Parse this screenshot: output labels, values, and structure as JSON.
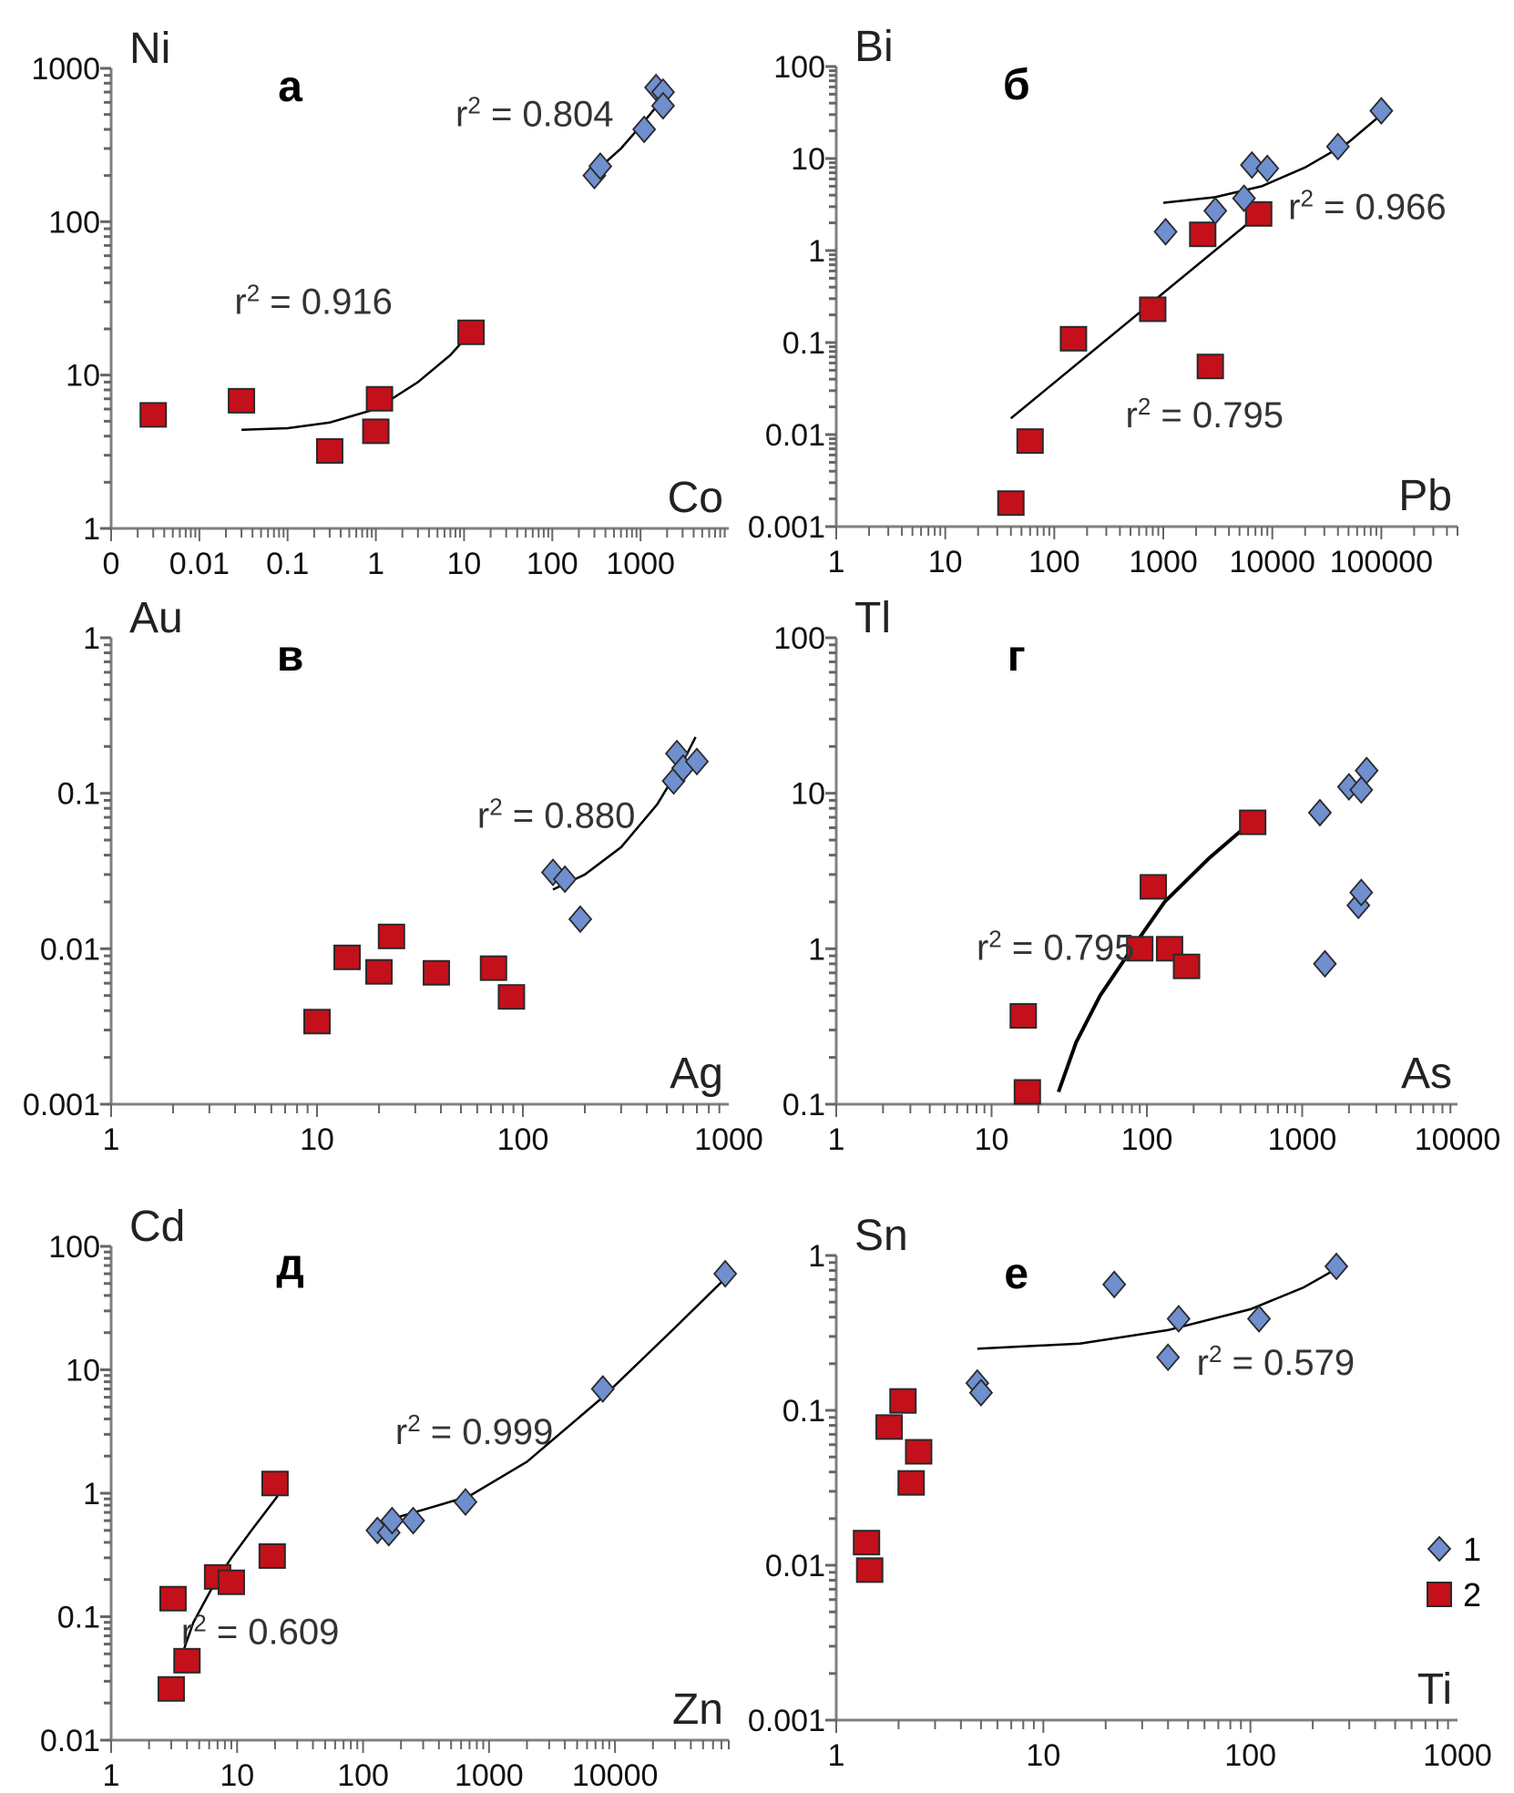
{
  "chart_data": [
    {
      "id": "a",
      "type": "scatter",
      "panel_label": "а",
      "xlabel": "Co",
      "ylabel": "Ni",
      "xscale": "log",
      "yscale": "log",
      "xlim": [
        0.001,
        10000
      ],
      "ylim": [
        1,
        1000
      ],
      "xtick_labels": [
        {
          "value": 0.001,
          "label": "0"
        },
        {
          "value": 0.01,
          "label": "0.01"
        },
        {
          "value": 0.1,
          "label": "0.1"
        },
        {
          "value": 1,
          "label": "1"
        },
        {
          "value": 10,
          "label": "10"
        },
        {
          "value": 100,
          "label": "100"
        },
        {
          "value": 1000,
          "label": "1000"
        }
      ],
      "ytick_labels": [
        {
          "value": 1,
          "label": "1"
        },
        {
          "value": 10,
          "label": "10"
        },
        {
          "value": 100,
          "label": "100"
        },
        {
          "value": 1000,
          "label": "1000"
        }
      ],
      "series": [
        {
          "name": "1",
          "marker": "diamond",
          "points": [
            [
              300,
              200
            ],
            [
              350,
              230
            ],
            [
              1100,
              400
            ],
            [
              1500,
              750
            ],
            [
              1800,
              700
            ],
            [
              1800,
              570
            ]
          ],
          "fit": {
            "r2_label": "0.804",
            "curve": [
              [
                300,
                210
              ],
              [
                600,
                300
              ],
              [
                1000,
                420
              ],
              [
                1500,
                560
              ],
              [
                1900,
                720
              ]
            ]
          }
        },
        {
          "name": "2",
          "marker": "square",
          "points": [
            [
              0.003,
              5.5
            ],
            [
              0.03,
              6.8
            ],
            [
              0.3,
              3.2
            ],
            [
              1,
              4.3
            ],
            [
              1.1,
              7
            ],
            [
              12,
              19
            ]
          ],
          "fit": {
            "r2_label": "0.916",
            "curve": [
              [
                0.03,
                4.4
              ],
              [
                0.1,
                4.5
              ],
              [
                0.3,
                4.9
              ],
              [
                1,
                6
              ],
              [
                3,
                9
              ],
              [
                7,
                13.5
              ],
              [
                11,
                18
              ]
            ]
          }
        }
      ],
      "r2_text_positions": [
        {
          "series": "1",
          "x": 8,
          "y": 420
        },
        {
          "series": "2",
          "x": 0.025,
          "y": 25
        }
      ]
    },
    {
      "id": "b",
      "type": "scatter",
      "panel_label": "б",
      "xlabel": "Pb",
      "ylabel": "Bi",
      "xscale": "log",
      "yscale": "log",
      "xlim": [
        1,
        500000
      ],
      "ylim": [
        0.001,
        100
      ],
      "xtick_labels": [
        {
          "value": 1,
          "label": "1"
        },
        {
          "value": 10,
          "label": "10"
        },
        {
          "value": 100,
          "label": "100"
        },
        {
          "value": 1000,
          "label": "1000"
        },
        {
          "value": 10000,
          "label": "10000"
        },
        {
          "value": 100000,
          "label": "100000"
        }
      ],
      "ytick_labels": [
        {
          "value": 0.001,
          "label": "0.001"
        },
        {
          "value": 0.01,
          "label": "0.01"
        },
        {
          "value": 0.1,
          "label": "0.1"
        },
        {
          "value": 1,
          "label": "1"
        },
        {
          "value": 10,
          "label": "10"
        },
        {
          "value": 100,
          "label": "100"
        }
      ],
      "series": [
        {
          "name": "1",
          "marker": "diamond",
          "points": [
            [
              1050,
              1.6
            ],
            [
              3000,
              2.7
            ],
            [
              5500,
              3.7
            ],
            [
              6500,
              8.5
            ],
            [
              9000,
              7.8
            ],
            [
              40000,
              13.5
            ],
            [
              100000,
              33
            ]
          ],
          "fit": {
            "r2_label": "0.966",
            "curve": [
              [
                1000,
                3.3
              ],
              [
                3000,
                3.8
              ],
              [
                8000,
                5
              ],
              [
                20000,
                8
              ],
              [
                50000,
                15
              ],
              [
                100000,
                30
              ]
            ]
          }
        },
        {
          "name": "2",
          "marker": "square",
          "points": [
            [
              40,
              0.0018
            ],
            [
              60,
              0.0085
            ],
            [
              150,
              0.11
            ],
            [
              800,
              0.23
            ],
            [
              2300,
              1.5
            ],
            [
              2700,
              0.055
            ],
            [
              7500,
              2.5
            ]
          ],
          "fit": {
            "r2_label": "0.795",
            "curve": [
              [
                40,
                0.015
              ],
              [
                7000,
                2.3
              ]
            ]
          }
        }
      ],
      "r2_text_positions": [
        {
          "series": "1",
          "x": 14000,
          "y": 2.2
        },
        {
          "series": "2",
          "x": 450,
          "y": 0.012
        }
      ]
    },
    {
      "id": "v",
      "type": "scatter",
      "panel_label": "в",
      "xlabel": "Ag",
      "ylabel": "Au",
      "xscale": "log",
      "yscale": "log",
      "xlim": [
        1,
        1000
      ],
      "ylim": [
        0.001,
        1
      ],
      "xtick_labels": [
        {
          "value": 1,
          "label": "1"
        },
        {
          "value": 10,
          "label": "10"
        },
        {
          "value": 100,
          "label": "100"
        },
        {
          "value": 1000,
          "label": "1000"
        }
      ],
      "ytick_labels": [
        {
          "value": 0.001,
          "label": "0.001"
        },
        {
          "value": 0.01,
          "label": "0.01"
        },
        {
          "value": 0.1,
          "label": "0.1"
        },
        {
          "value": 1,
          "label": "1"
        }
      ],
      "series": [
        {
          "name": "1",
          "marker": "diamond",
          "points": [
            [
              140,
              0.031
            ],
            [
              160,
              0.028
            ],
            [
              190,
              0.0155
            ],
            [
              540,
              0.12
            ],
            [
              560,
              0.18
            ],
            [
              600,
              0.145
            ],
            [
              700,
              0.16
            ]
          ],
          "fit": {
            "r2_label": "0.880",
            "curve": [
              [
                140,
                0.024
              ],
              [
                200,
                0.03
              ],
              [
                300,
                0.045
              ],
              [
                450,
                0.085
              ],
              [
                600,
                0.16
              ],
              [
                690,
                0.23
              ]
            ]
          }
        },
        {
          "name": "2",
          "marker": "square",
          "points": [
            [
              10,
              0.0034
            ],
            [
              14,
              0.0088
            ],
            [
              20,
              0.0071
            ],
            [
              23,
              0.012
            ],
            [
              38,
              0.007
            ],
            [
              72,
              0.0075
            ],
            [
              88,
              0.0049
            ]
          ],
          "fit": null
        }
      ],
      "r2_text_positions": [
        {
          "series": "1",
          "x": 60,
          "y": 0.06
        }
      ]
    },
    {
      "id": "g",
      "type": "scatter",
      "panel_label": "г",
      "xlabel": "As",
      "ylabel": "Tl",
      "xscale": "log",
      "yscale": "log",
      "xlim": [
        1,
        10000
      ],
      "ylim": [
        0.1,
        100
      ],
      "xtick_labels": [
        {
          "value": 1,
          "label": "1"
        },
        {
          "value": 10,
          "label": "10"
        },
        {
          "value": 100,
          "label": "100"
        },
        {
          "value": 1000,
          "label": "1000"
        },
        {
          "value": 10000,
          "label": "10000"
        }
      ],
      "ytick_labels": [
        {
          "value": 0.1,
          "label": "0.1"
        },
        {
          "value": 1,
          "label": "1"
        },
        {
          "value": 10,
          "label": "10"
        },
        {
          "value": 100,
          "label": "100"
        }
      ],
      "series": [
        {
          "name": "1",
          "marker": "diamond",
          "points": [
            [
              1300,
              7.5
            ],
            [
              1400,
              0.8
            ],
            [
              2000,
              11
            ],
            [
              2400,
              10.5
            ],
            [
              2300,
              1.9
            ],
            [
              2400,
              2.3
            ],
            [
              2600,
              14
            ]
          ],
          "fit": null
        },
        {
          "name": "2",
          "marker": "square",
          "points": [
            [
              16,
              0.37
            ],
            [
              17,
              0.12
            ],
            [
              90,
              1
            ],
            [
              110,
              2.5
            ],
            [
              140,
              1
            ],
            [
              180,
              0.77
            ],
            [
              480,
              6.5
            ]
          ],
          "fit": {
            "r2_label": "0.795",
            "curve": [
              [
                27,
                0.12
              ],
              [
                35,
                0.25
              ],
              [
                50,
                0.5
              ],
              [
                80,
                1.0
              ],
              [
                130,
                2.0
              ],
              [
                250,
                3.8
              ],
              [
                450,
                6.3
              ]
            ]
          }
        }
      ],
      "r2_text_positions": [
        {
          "series": "2",
          "x": 8,
          "y": 0.85
        }
      ]
    },
    {
      "id": "d",
      "type": "scatter",
      "panel_label": "д",
      "xlabel": "Zn",
      "ylabel": "Cd",
      "xscale": "log",
      "yscale": "log",
      "xlim": [
        1,
        80000
      ],
      "ylim": [
        0.01,
        100
      ],
      "xtick_labels": [
        {
          "value": 1,
          "label": "1"
        },
        {
          "value": 10,
          "label": "10"
        },
        {
          "value": 100,
          "label": "100"
        },
        {
          "value": 1000,
          "label": "1000"
        },
        {
          "value": 10000,
          "label": "10000"
        }
      ],
      "ytick_labels": [
        {
          "value": 0.01,
          "label": "0.01"
        },
        {
          "value": 0.1,
          "label": "0.1"
        },
        {
          "value": 1,
          "label": "1"
        },
        {
          "value": 10,
          "label": "10"
        },
        {
          "value": 100,
          "label": "100"
        }
      ],
      "series": [
        {
          "name": "1",
          "marker": "diamond",
          "points": [
            [
              130,
              0.5
            ],
            [
              160,
              0.48
            ],
            [
              170,
              0.6
            ],
            [
              250,
              0.6
            ],
            [
              650,
              0.85
            ],
            [
              8000,
              7
            ],
            [
              75000,
              60
            ]
          ],
          "fit": {
            "r2_label": "0.999",
            "curve": [
              [
                170,
                0.62
              ],
              [
                400,
                0.8
              ],
              [
                700,
                0.95
              ],
              [
                2000,
                1.8
              ],
              [
                8000,
                6
              ],
              [
                30000,
                22
              ],
              [
                75000,
                55
              ]
            ]
          }
        },
        {
          "name": "2",
          "marker": "square",
          "points": [
            [
              3,
              0.026
            ],
            [
              3.1,
              0.14
            ],
            [
              4,
              0.044
            ],
            [
              7,
              0.21
            ],
            [
              9,
              0.19
            ],
            [
              19,
              0.31
            ],
            [
              20,
              1.2
            ]
          ],
          "fit": {
            "r2_label": "0.609",
            "curve": [
              [
                3.4,
                0.04
              ],
              [
                4.5,
                0.09
              ],
              [
                6.5,
                0.18
              ],
              [
                9,
                0.3
              ],
              [
                13,
                0.5
              ],
              [
                21,
                0.95
              ]
            ]
          }
        }
      ],
      "r2_text_positions": [
        {
          "series": "1",
          "x": 180,
          "y": 2.5
        },
        {
          "series": "2",
          "x": 3.6,
          "y": 0.06
        }
      ]
    },
    {
      "id": "e",
      "type": "scatter",
      "panel_label": "е",
      "xlabel": "Ti",
      "ylabel": "Sn",
      "xscale": "log",
      "yscale": "log",
      "xlim": [
        1,
        1000
      ],
      "ylim": [
        0.001,
        1
      ],
      "xtick_labels": [
        {
          "value": 1,
          "label": "1"
        },
        {
          "value": 10,
          "label": "10"
        },
        {
          "value": 100,
          "label": "100"
        },
        {
          "value": 1000,
          "label": "1000"
        }
      ],
      "ytick_labels": [
        {
          "value": 0.001,
          "label": "0.001"
        },
        {
          "value": 0.01,
          "label": "0.01"
        },
        {
          "value": 0.1,
          "label": "0.1"
        },
        {
          "value": 1,
          "label": "1"
        }
      ],
      "series": [
        {
          "name": "1",
          "marker": "diamond",
          "points": [
            [
              4.8,
              0.15
            ],
            [
              5,
              0.13
            ],
            [
              22,
              0.65
            ],
            [
              40,
              0.22
            ],
            [
              45,
              0.39
            ],
            [
              110,
              0.39
            ],
            [
              260,
              0.85
            ]
          ],
          "fit": {
            "r2_label": "0.579",
            "curve": [
              [
                4.8,
                0.25
              ],
              [
                15,
                0.27
              ],
              [
                40,
                0.33
              ],
              [
                100,
                0.45
              ],
              [
                180,
                0.62
              ],
              [
                260,
                0.82
              ]
            ]
          }
        },
        {
          "name": "2",
          "marker": "square",
          "points": [
            [
              1.4,
              0.014
            ],
            [
              1.45,
              0.0093
            ],
            [
              1.8,
              0.078
            ],
            [
              2.1,
              0.115
            ],
            [
              2.3,
              0.034
            ],
            [
              2.5,
              0.054
            ]
          ],
          "fit": null
        }
      ],
      "r2_text_positions": [
        {
          "series": "1",
          "x": 55,
          "y": 0.17
        }
      ],
      "legend": {
        "placement": "bottom-right",
        "entries": [
          {
            "marker": "diamond",
            "label": "1"
          },
          {
            "marker": "square",
            "label": "2"
          }
        ]
      }
    }
  ],
  "colors": {
    "series_1_fill": "#6f8fcf",
    "series_2_fill": "#c4101a",
    "marker_stroke": "#2a2a2a",
    "axis": "#808080",
    "fit_line": "#000000"
  },
  "r2_prefix": "r",
  "r2_sup": "2",
  "r2_eq": " = "
}
